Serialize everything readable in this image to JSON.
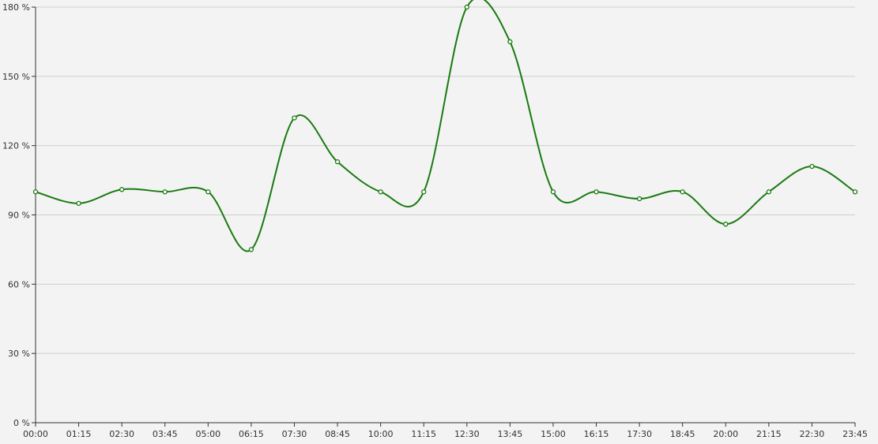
{
  "chart_data": {
    "type": "line",
    "title": "",
    "xlabel": "",
    "ylabel": "",
    "categories": [
      "00:00",
      "01:15",
      "02:30",
      "03:45",
      "05:00",
      "06:15",
      "07:30",
      "08:45",
      "10:00",
      "11:15",
      "12:30",
      "13:45",
      "15:00",
      "16:15",
      "17:30",
      "18:45",
      "20:00",
      "21:15",
      "22:30",
      "23:45"
    ],
    "series": [
      {
        "values": [
          100,
          95,
          101,
          100,
          100,
          75,
          132,
          113,
          100,
          100,
          180,
          165,
          100,
          100,
          97,
          100,
          86,
          100,
          111,
          100
        ]
      }
    ],
    "y_ticks": [
      "0 %",
      "30 %",
      "60 %",
      "90 %",
      "120 %",
      "150 %",
      "180 %"
    ],
    "y_tick_values": [
      0,
      30,
      60,
      90,
      120,
      150,
      180
    ],
    "ylim": [
      0,
      180
    ],
    "grid": "horizontal",
    "smooth": true,
    "marker": "open-circle",
    "line_color": "#1a7a12",
    "grid_color": "#cfcfcf",
    "axis_color": "#333333",
    "background": "#f3f3f3"
  }
}
